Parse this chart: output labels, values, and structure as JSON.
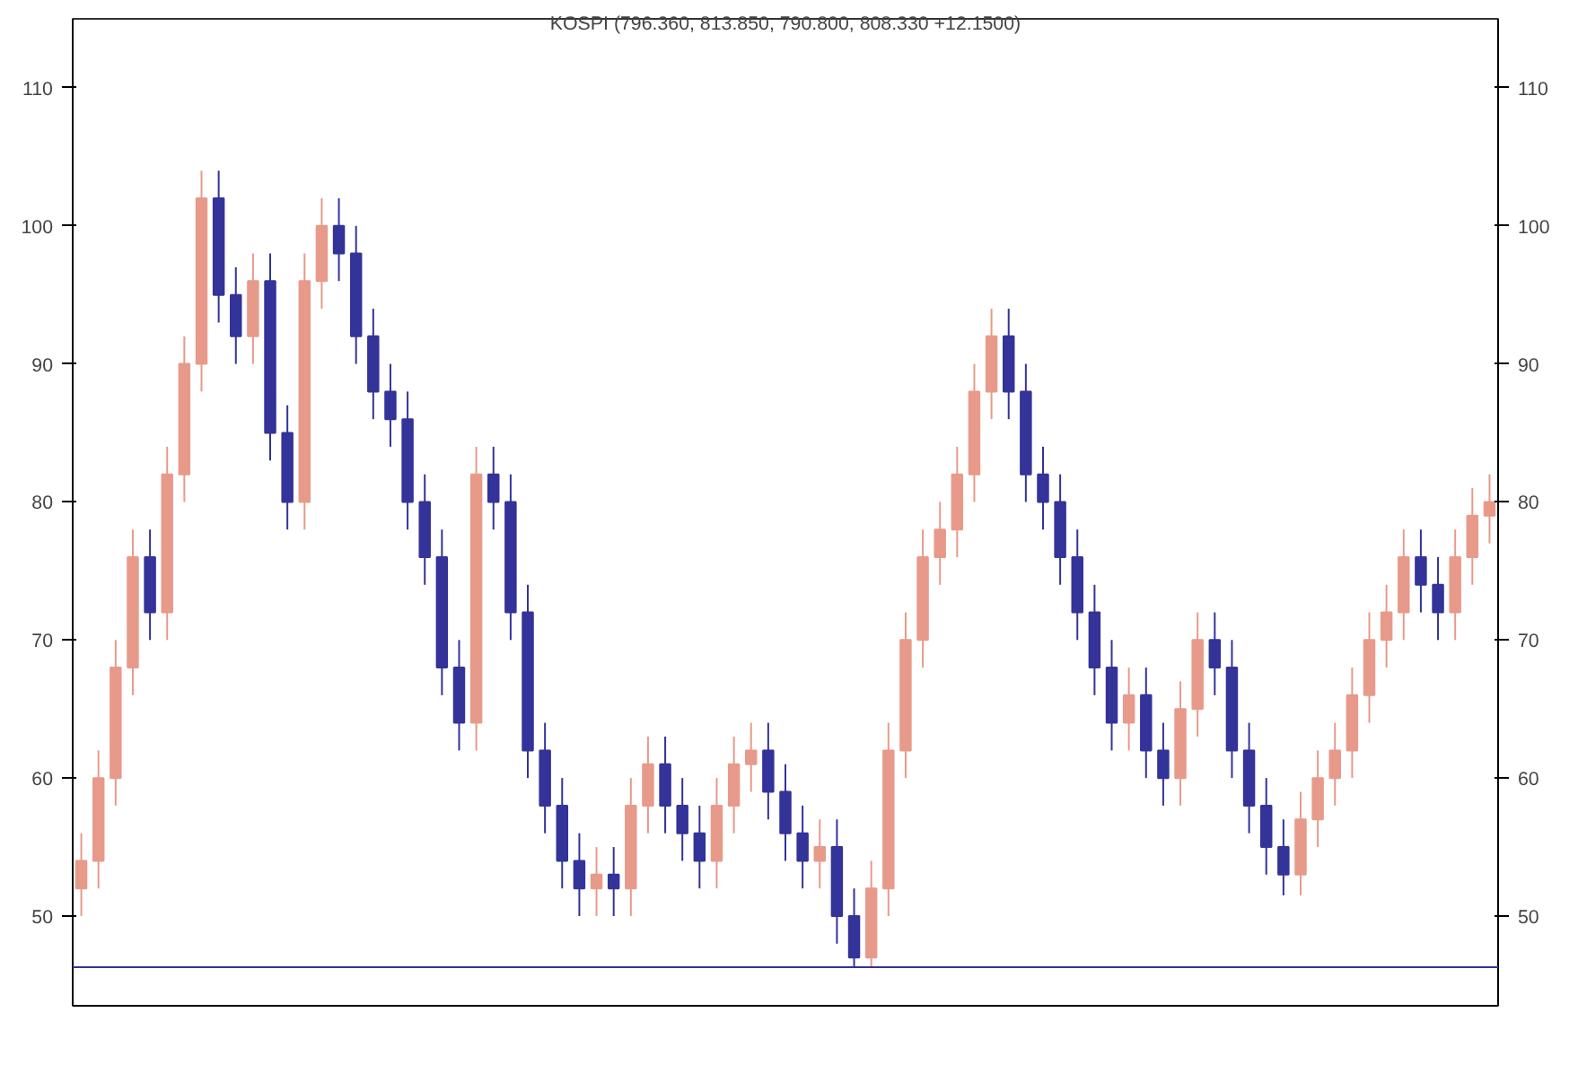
{
  "chart_data": {
    "type": "candlestick",
    "title": "KOSPI (796.360, 813.850, 790.800, 808.330 +12.1500)",
    "categories": [
      null,
      null,
      null,
      null,
      null,
      null,
      null,
      null,
      null,
      null,
      null,
      null,
      null,
      null,
      null,
      null,
      null,
      null,
      null,
      null,
      null,
      null,
      null,
      null,
      null,
      null,
      null,
      null,
      null,
      null,
      null,
      null,
      null,
      null,
      null,
      null,
      null,
      null,
      null,
      null,
      null,
      null,
      null,
      null,
      null,
      null,
      null,
      null,
      null,
      null,
      null,
      null,
      null,
      null,
      null,
      null,
      null,
      null,
      null,
      null,
      null,
      null,
      null,
      null,
      null,
      null,
      null,
      null,
      null,
      null,
      null,
      null,
      null,
      null,
      null,
      null,
      null,
      null,
      null,
      null,
      null,
      null,
      null
    ],
    "ohlc": [
      [
        52,
        56,
        50,
        54
      ],
      [
        54,
        62,
        52,
        60
      ],
      [
        60,
        70,
        58,
        68
      ],
      [
        68,
        78,
        66,
        76
      ],
      [
        76,
        78,
        70,
        72
      ],
      [
        72,
        84,
        70,
        82
      ],
      [
        82,
        92,
        80,
        90
      ],
      [
        90,
        104,
        88,
        102
      ],
      [
        102,
        104,
        93,
        95
      ],
      [
        95,
        97,
        90,
        92
      ],
      [
        92,
        98,
        90,
        96
      ],
      [
        96,
        98,
        83,
        85
      ],
      [
        85,
        87,
        78,
        80
      ],
      [
        80,
        98,
        78,
        96
      ],
      [
        96,
        102,
        94,
        100
      ],
      [
        100,
        102,
        96,
        98
      ],
      [
        98,
        100,
        90,
        92
      ],
      [
        92,
        94,
        86,
        88
      ],
      [
        88,
        90,
        84,
        86
      ],
      [
        86,
        88,
        78,
        80
      ],
      [
        80,
        82,
        74,
        76
      ],
      [
        76,
        78,
        66,
        68
      ],
      [
        68,
        70,
        62,
        64
      ],
      [
        64,
        84,
        62,
        82
      ],
      [
        82,
        84,
        78,
        80
      ],
      [
        80,
        82,
        70,
        72
      ],
      [
        72,
        74,
        60,
        62
      ],
      [
        62,
        64,
        56,
        58
      ],
      [
        58,
        60,
        52,
        54
      ],
      [
        54,
        56,
        50,
        52
      ],
      [
        52,
        55,
        50,
        53
      ],
      [
        53,
        55,
        50,
        52
      ],
      [
        52,
        60,
        50,
        58
      ],
      [
        58,
        63,
        56,
        61
      ],
      [
        61,
        63,
        56,
        58
      ],
      [
        58,
        60,
        54,
        56
      ],
      [
        56,
        58,
        52,
        54
      ],
      [
        54,
        60,
        52,
        58
      ],
      [
        58,
        63,
        56,
        61
      ],
      [
        61,
        64,
        59,
        62
      ],
      [
        62,
        64,
        57,
        59
      ],
      [
        59,
        61,
        54,
        56
      ],
      [
        56,
        58,
        52,
        54
      ],
      [
        54,
        57,
        52,
        55
      ],
      [
        55,
        57,
        48,
        50
      ],
      [
        50,
        52,
        46.3,
        47
      ],
      [
        47,
        54,
        46.3,
        52
      ],
      [
        52,
        64,
        50,
        62
      ],
      [
        62,
        72,
        60,
        70
      ],
      [
        70,
        78,
        68,
        76
      ],
      [
        76,
        80,
        74,
        78
      ],
      [
        78,
        84,
        76,
        82
      ],
      [
        82,
        90,
        80,
        88
      ],
      [
        88,
        94,
        86,
        92
      ],
      [
        92,
        94,
        86,
        88
      ],
      [
        88,
        90,
        80,
        82
      ],
      [
        82,
        84,
        78,
        80
      ],
      [
        80,
        82,
        74,
        76
      ],
      [
        76,
        78,
        70,
        72
      ],
      [
        72,
        74,
        66,
        68
      ],
      [
        68,
        70,
        62,
        64
      ],
      [
        64,
        68,
        62,
        66
      ],
      [
        66,
        68,
        60,
        62
      ],
      [
        62,
        64,
        58,
        60
      ],
      [
        60,
        67,
        58,
        65
      ],
      [
        65,
        72,
        63,
        70
      ],
      [
        70,
        72,
        66,
        68
      ],
      [
        68,
        70,
        60,
        62
      ],
      [
        62,
        64,
        56,
        58
      ],
      [
        58,
        60,
        53,
        55
      ],
      [
        55,
        57,
        51.5,
        53
      ],
      [
        53,
        59,
        51.5,
        57
      ],
      [
        57,
        62,
        55,
        60
      ],
      [
        60,
        64,
        58,
        62
      ],
      [
        62,
        68,
        60,
        66
      ],
      [
        66,
        72,
        64,
        70
      ],
      [
        70,
        74,
        68,
        72
      ],
      [
        72,
        78,
        70,
        76
      ],
      [
        76,
        78,
        72,
        74
      ],
      [
        74,
        76,
        70,
        72
      ],
      [
        72,
        78,
        70,
        76
      ],
      [
        76,
        81,
        74,
        79
      ],
      [
        79,
        82,
        77,
        80
      ]
    ],
    "colors": [
      "#e89a8a",
      "#e89a8a",
      "#e89a8a",
      "#e89a8a",
      "#333399",
      "#e89a8a",
      "#e89a8a",
      "#e89a8a",
      "#333399",
      "#333399",
      "#e89a8a",
      "#333399",
      "#333399",
      "#e89a8a",
      "#e89a8a",
      "#333399",
      "#333399",
      "#333399",
      "#333399",
      "#333399",
      "#333399",
      "#333399",
      "#333399",
      "#e89a8a",
      "#333399",
      "#333399",
      "#333399",
      "#333399",
      "#333399",
      "#333399",
      "#e89a8a",
      "#333399",
      "#e89a8a",
      "#e89a8a",
      "#333399",
      "#333399",
      "#333399",
      "#e89a8a",
      "#e89a8a",
      "#e89a8a",
      "#333399",
      "#333399",
      "#333399",
      "#e89a8a",
      "#333399",
      "#333399",
      "#e89a8a",
      "#e89a8a",
      "#e89a8a",
      "#e89a8a",
      "#e89a8a",
      "#e89a8a",
      "#e89a8a",
      "#e89a8a",
      "#333399",
      "#333399",
      "#333399",
      "#333399",
      "#333399",
      "#333399",
      "#333399",
      "#e89a8a",
      "#333399",
      "#333399",
      "#e89a8a",
      "#e89a8a",
      "#333399",
      "#333399",
      "#333399",
      "#333399",
      "#333399",
      "#e89a8a",
      "#e89a8a",
      "#e89a8a",
      "#e89a8a",
      "#e89a8a",
      "#e89a8a",
      "#e89a8a",
      "#333399",
      "#333399",
      "#e89a8a",
      "#e89a8a",
      "#e89a8a"
    ],
    "ref_lines": [
      {
        "axis": "y",
        "value": 46.3,
        "color": "#333399"
      }
    ],
    "ylim": [
      43.5,
      115
    ],
    "yticks": [
      50,
      60,
      70,
      80,
      90,
      100,
      110
    ],
    "y2lim": [
      43.5,
      115
    ],
    "y2ticks": [
      50,
      60,
      70,
      80,
      90,
      100,
      110
    ],
    "grid": false
  }
}
